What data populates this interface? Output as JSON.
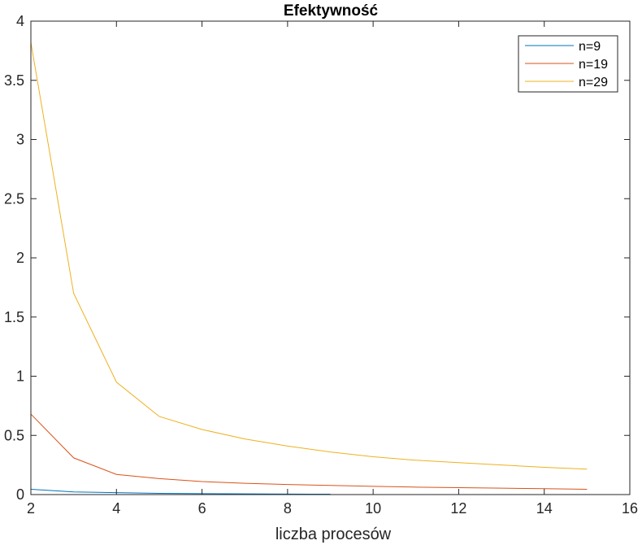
{
  "chart_data": {
    "type": "line",
    "title": "Efektywność",
    "xlabel": "liczba procesów",
    "ylabel": "",
    "xlim": [
      2,
      16
    ],
    "ylim": [
      0,
      4
    ],
    "xticks": [
      2,
      4,
      6,
      8,
      10,
      12,
      14,
      16
    ],
    "yticks": [
      0,
      0.5,
      1,
      1.5,
      2,
      2.5,
      3,
      3.5,
      4
    ],
    "xtick_labels": [
      "2",
      "4",
      "6",
      "8",
      "10",
      "12",
      "14",
      "16"
    ],
    "ytick_labels": [
      "0",
      "0.5",
      "1",
      "1.5",
      "2",
      "2.5",
      "3",
      "3.5",
      "4"
    ],
    "grid": false,
    "legend_position": "top-right",
    "series": [
      {
        "name": "n=9",
        "color": "#0072BD",
        "x": [
          2,
          3,
          4,
          5,
          6,
          7,
          8,
          9
        ],
        "y": [
          0.045,
          0.022,
          0.016,
          0.01,
          0.008,
          0.006,
          0.004,
          0.003
        ]
      },
      {
        "name": "n=19",
        "color": "#D95319",
        "x": [
          2,
          3,
          4,
          5,
          6,
          7,
          8,
          9,
          10,
          11,
          12,
          13,
          14,
          15
        ],
        "y": [
          0.68,
          0.31,
          0.17,
          0.135,
          0.11,
          0.095,
          0.085,
          0.077,
          0.07,
          0.063,
          0.058,
          0.054,
          0.05,
          0.045
        ]
      },
      {
        "name": "n=29",
        "color": "#EDB120",
        "x": [
          2,
          3,
          4,
          5,
          6,
          7,
          8,
          9,
          10,
          11,
          12,
          13,
          14,
          15
        ],
        "y": [
          3.82,
          1.7,
          0.95,
          0.66,
          0.55,
          0.47,
          0.41,
          0.36,
          0.32,
          0.29,
          0.27,
          0.25,
          0.23,
          0.215
        ]
      }
    ]
  }
}
